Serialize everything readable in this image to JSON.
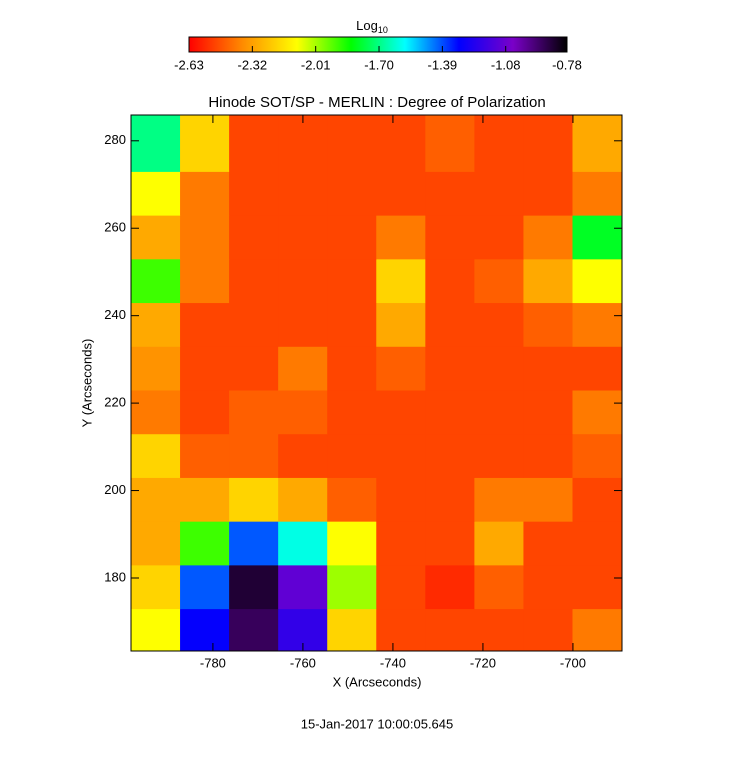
{
  "chart_data": {
    "type": "heatmap",
    "title": "Hinode SOT/SP - MERLIN : Degree of Polarization",
    "x_label": "X (Arcseconds)",
    "y_label": "Y (Arcseconds)",
    "footer": "15-Jan-2017 10:00:05.645",
    "colorbar_label": "Log",
    "colorbar_label_sub": "10",
    "colormap": [
      "#ff0000",
      "#ff8c00",
      "#ffff00",
      "#00ff00",
      "#00ffff",
      "#0000ff",
      "#7a00c8",
      "#000000"
    ],
    "zlim": [
      -2.63,
      -0.78
    ],
    "zticks": [
      -2.63,
      -2.32,
      -2.01,
      {
        "value": -1.7,
        "label": "-1.70"
      },
      -1.39,
      -1.08,
      -0.78
    ],
    "xlim": [
      -798.2,
      -689.1
    ],
    "ylim": [
      163.3,
      285.9
    ],
    "xticks": [
      -780,
      -760,
      -740,
      -720,
      -700
    ],
    "yticks": [
      180,
      200,
      220,
      240,
      260,
      280
    ],
    "xbins": [
      -798.2,
      -787.3,
      -776.4,
      -765.5,
      -754.6,
      -743.7,
      -732.8,
      -721.9,
      -711.0,
      -700.1,
      -689.1
    ],
    "ybins": [
      163.3,
      173,
      183,
      193,
      203,
      213,
      223,
      233,
      243,
      253,
      263,
      273,
      285.9
    ],
    "z": [
      [
        -2.1,
        -1.3,
        -0.9,
        -1.2,
        -2.2,
        -2.5,
        -2.5,
        -2.5,
        -2.5,
        -2.4
      ],
      [
        -2.2,
        -1.4,
        -0.85,
        -1.1,
        -2.0,
        -2.5,
        -2.55,
        -2.45,
        -2.5,
        -2.5
      ],
      [
        -2.3,
        -1.9,
        -1.4,
        -1.6,
        -2.1,
        -2.5,
        -2.5,
        -2.3,
        -2.5,
        -2.5
      ],
      [
        -2.3,
        -2.3,
        -2.2,
        -2.3,
        -2.45,
        -2.5,
        -2.5,
        -2.4,
        -2.4,
        -2.5
      ],
      [
        -2.2,
        -2.45,
        -2.45,
        -2.5,
        -2.5,
        -2.5,
        -2.5,
        -2.5,
        -2.5,
        -2.45
      ],
      [
        -2.4,
        -2.5,
        -2.45,
        -2.45,
        -2.5,
        -2.5,
        -2.5,
        -2.5,
        -2.5,
        -2.4
      ],
      [
        -2.35,
        -2.5,
        -2.5,
        -2.4,
        -2.5,
        -2.45,
        -2.5,
        -2.5,
        -2.5,
        -2.5
      ],
      [
        -2.3,
        -2.5,
        -2.5,
        -2.5,
        -2.5,
        -2.3,
        -2.5,
        -2.5,
        -2.45,
        -2.4
      ],
      [
        -1.9,
        -2.4,
        -2.5,
        -2.5,
        -2.5,
        -2.2,
        -2.5,
        -2.45,
        -2.3,
        -2.1
      ],
      [
        -2.3,
        -2.4,
        -2.5,
        -2.5,
        -2.5,
        -2.4,
        -2.5,
        -2.5,
        -2.4,
        -1.8
      ],
      [
        -2.1,
        -2.4,
        -2.5,
        -2.5,
        -2.5,
        -2.5,
        -2.5,
        -2.5,
        -2.5,
        -2.4
      ],
      [
        -1.7,
        -2.2,
        -2.5,
        -2.5,
        -2.5,
        -2.5,
        -2.45,
        -2.5,
        -2.5,
        -2.3
      ]
    ]
  }
}
